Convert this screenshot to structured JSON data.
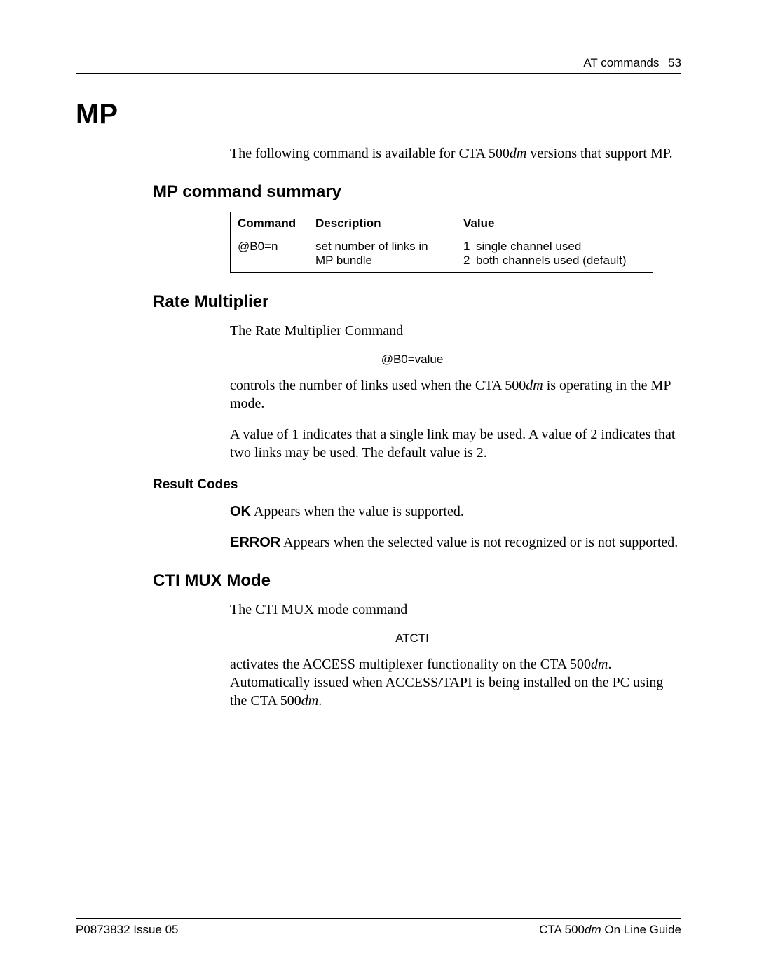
{
  "header": {
    "section": "AT commands",
    "page_number": "53"
  },
  "h1": "MP",
  "intro_pre": "The following command is available for CTA 500",
  "intro_em": "dm",
  "intro_post": " versions that support MP.",
  "sec1": {
    "title": "MP command summary",
    "th_cmd": "Command",
    "th_desc": "Description",
    "th_val": "Value",
    "row_cmd": "@B0=n",
    "row_desc": "set number of links in MP bundle",
    "val1_num": "1",
    "val1_text": "single channel used",
    "val2_num": "2",
    "val2_text": "both channels used (default)"
  },
  "sec2": {
    "title": "Rate Multiplier",
    "p1": "The Rate Multiplier Command",
    "code": "@B0=value",
    "p2_pre": "controls the number of links used when the CTA 500",
    "p2_em": "dm",
    "p2_post": " is operating in the MP mode.",
    "p3": "A value of 1 indicates that a single link may be used. A value of 2 indicates that two links may be used. The default value is 2.",
    "result_title": "Result Codes",
    "ok_label": "OK",
    "ok_text": "  Appears when the value is supported.",
    "err_label": "ERROR",
    "err_text": "  Appears when the selected value is not recognized or is not supported."
  },
  "sec3": {
    "title": "CTI MUX Mode",
    "p1": "The CTI MUX mode command",
    "code": "ATCTI",
    "p2_pre": "activates the ACCESS multiplexer functionality on the CTA 500",
    "p2_em": "dm",
    "p2_mid": ". Automatically issued when ACCESS/TAPI is being installed on the PC using the CTA 500",
    "p2_em2": "dm",
    "p2_post": "."
  },
  "footer": {
    "left": "P0873832  Issue 05",
    "right_pre": "CTA 500",
    "right_em": "dm",
    "right_post": " On Line Guide"
  }
}
